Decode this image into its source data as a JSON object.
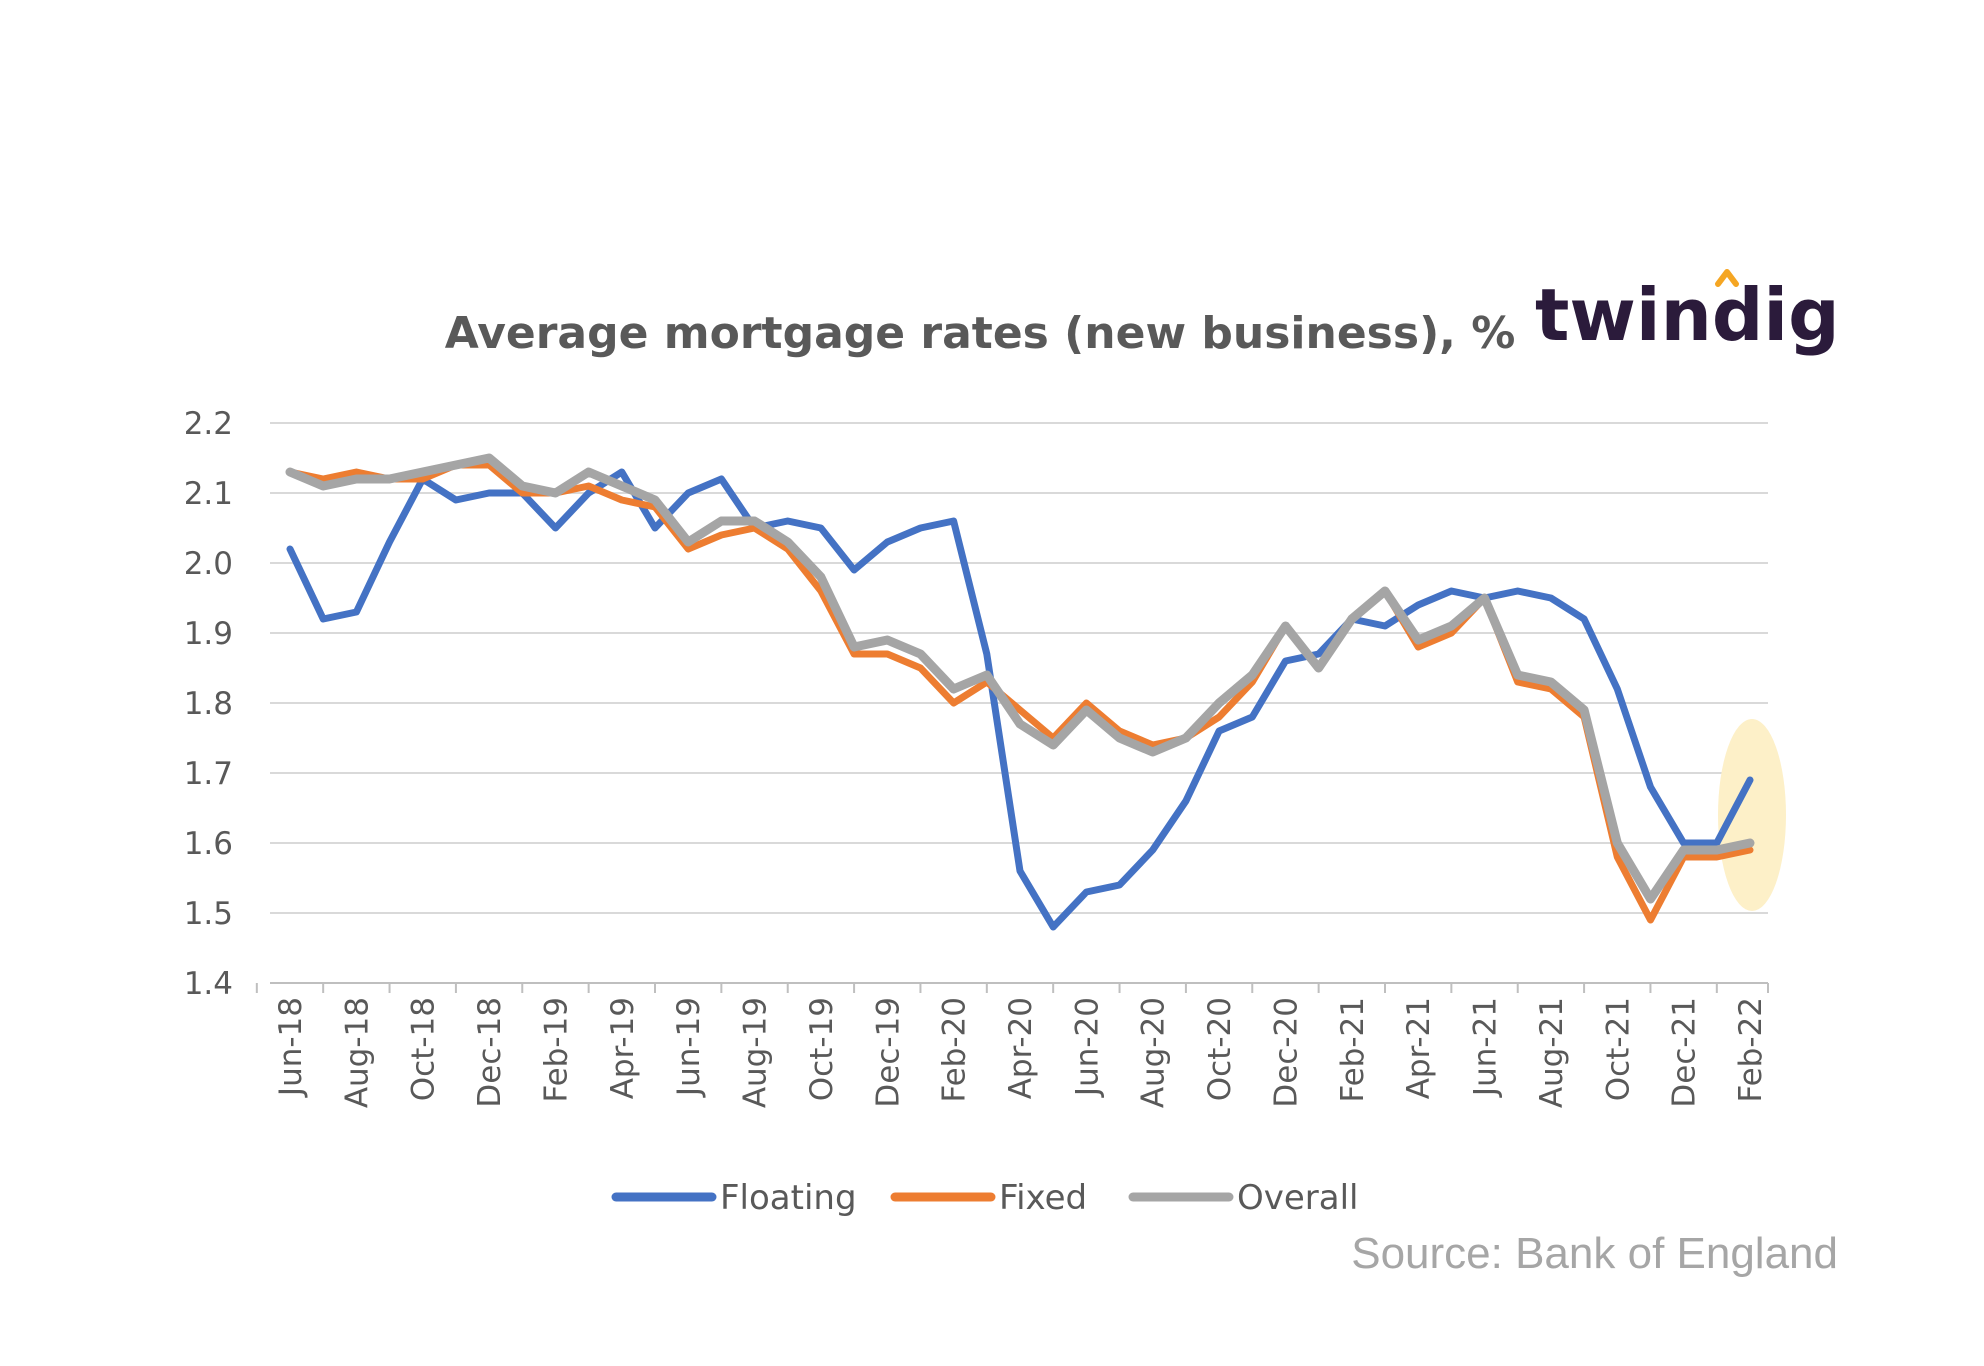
{
  "brand": {
    "name": "twindig",
    "accent": "#f5a623",
    "color": "#2b1b3b"
  },
  "source": "Source: Bank of England",
  "colors": {
    "Floating": "#4472c4",
    "Fixed": "#ed7d31",
    "Overall": "#a5a5a5",
    "highlight": "#fdf0c8"
  },
  "chart_data": {
    "type": "line",
    "title": "Average mortgage rates (new business), %",
    "xlabel": "",
    "ylabel": "",
    "ylim": [
      1.4,
      2.2
    ],
    "yticks": [
      "1.4",
      "1.5",
      "1.6",
      "1.7",
      "1.8",
      "1.9",
      "2.0",
      "2.1",
      "2.2"
    ],
    "grid": true,
    "legend_position": "bottom",
    "x": [
      "Jun-18",
      "Jul-18",
      "Aug-18",
      "Sep-18",
      "Oct-18",
      "Nov-18",
      "Dec-18",
      "Jan-19",
      "Feb-19",
      "Mar-19",
      "Apr-19",
      "May-19",
      "Jun-19",
      "Jul-19",
      "Aug-19",
      "Sep-19",
      "Oct-19",
      "Nov-19",
      "Dec-19",
      "Jan-20",
      "Feb-20",
      "Mar-20",
      "Apr-20",
      "May-20",
      "Jun-20",
      "Jul-20",
      "Aug-20",
      "Sep-20",
      "Oct-20",
      "Nov-20",
      "Dec-20",
      "Jan-21",
      "Feb-21",
      "Mar-21",
      "Apr-21",
      "May-21",
      "Jun-21",
      "Jul-21",
      "Aug-21",
      "Sep-21",
      "Oct-21",
      "Nov-21",
      "Dec-21",
      "Jan-22",
      "Feb-22"
    ],
    "tick_labels": [
      "Jun-18",
      "Aug-18",
      "Oct-18",
      "Dec-18",
      "Feb-19",
      "Apr-19",
      "Jun-19",
      "Aug-19",
      "Oct-19",
      "Dec-19",
      "Feb-20",
      "Apr-20",
      "Jun-20",
      "Aug-20",
      "Oct-20",
      "Dec-20",
      "Feb-21",
      "Apr-21",
      "Jun-21",
      "Aug-21",
      "Oct-21",
      "Dec-21",
      "Feb-22"
    ],
    "series": [
      {
        "name": "Floating",
        "values": [
          2.02,
          1.92,
          1.93,
          2.03,
          2.12,
          2.09,
          2.1,
          2.1,
          2.05,
          2.1,
          2.13,
          2.05,
          2.1,
          2.12,
          2.05,
          2.06,
          2.05,
          1.99,
          2.03,
          2.05,
          2.06,
          1.87,
          1.56,
          1.48,
          1.53,
          1.54,
          1.59,
          1.66,
          1.76,
          1.78,
          1.86,
          1.87,
          1.92,
          1.91,
          1.94,
          1.96,
          1.95,
          1.96,
          1.95,
          1.92,
          1.82,
          1.68,
          1.6,
          1.6,
          1.69
        ]
      },
      {
        "name": "Fixed",
        "values": [
          2.13,
          2.12,
          2.13,
          2.12,
          2.12,
          2.14,
          2.14,
          2.1,
          2.1,
          2.11,
          2.09,
          2.08,
          2.02,
          2.04,
          2.05,
          2.02,
          1.96,
          1.87,
          1.87,
          1.85,
          1.8,
          1.83,
          1.79,
          1.75,
          1.8,
          1.76,
          1.74,
          1.75,
          1.78,
          1.83,
          1.91,
          1.85,
          1.92,
          1.96,
          1.88,
          1.9,
          1.95,
          1.83,
          1.82,
          1.78,
          1.58,
          1.49,
          1.58,
          1.58,
          1.59
        ]
      },
      {
        "name": "Overall",
        "values": [
          2.13,
          2.11,
          2.12,
          2.12,
          2.13,
          2.14,
          2.15,
          2.11,
          2.1,
          2.13,
          2.11,
          2.09,
          2.03,
          2.06,
          2.06,
          2.03,
          1.98,
          1.88,
          1.89,
          1.87,
          1.82,
          1.84,
          1.77,
          1.74,
          1.79,
          1.75,
          1.73,
          1.75,
          1.8,
          1.84,
          1.91,
          1.85,
          1.92,
          1.96,
          1.89,
          1.91,
          1.95,
          1.84,
          1.83,
          1.79,
          1.6,
          1.52,
          1.59,
          1.59,
          1.6
        ]
      }
    ]
  }
}
